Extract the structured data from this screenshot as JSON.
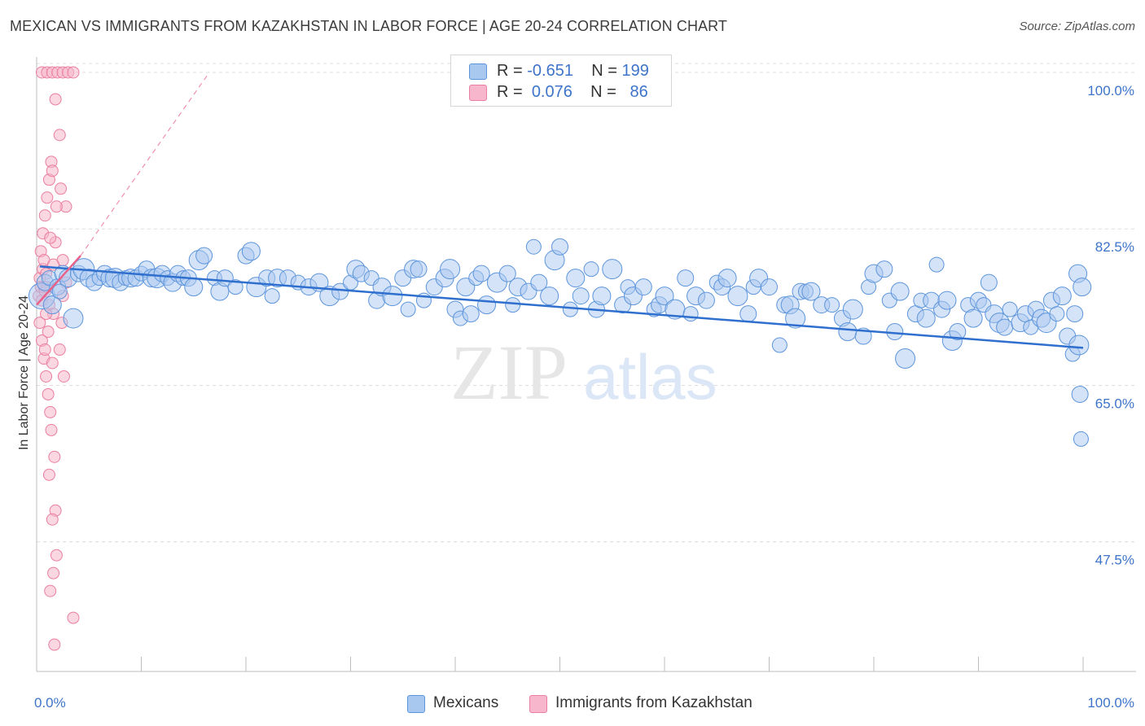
{
  "header": {
    "title": "MEXICAN VS IMMIGRANTS FROM KAZAKHSTAN IN LABOR FORCE | AGE 20-24 CORRELATION CHART",
    "source": "Source: ZipAtlas.com"
  },
  "watermark": {
    "zip": "ZIP",
    "atlas": "atlas"
  },
  "legend_top": [
    {
      "r_label": "R =",
      "r_value": "-0.651",
      "n_label": "N =",
      "n_value": "199",
      "color": "#a9c8f0"
    },
    {
      "r_label": "R =",
      "r_value": "0.076",
      "n_label": "N =",
      "n_value": "86",
      "color": "#f7b6cb"
    }
  ],
  "legend_bottom": [
    {
      "label": "Mexicans",
      "color": "#a9c8f0"
    },
    {
      "label": "Immigrants from Kazakhstan",
      "color": "#f7b6cb"
    }
  ],
  "colors": {
    "blue_fill": "#a9c8f0",
    "blue_stroke": "#5d95dc",
    "blue_line": "#2f6fce",
    "pink_fill": "#f7b6cb",
    "pink_stroke": "#ea7fa0",
    "pink_line": "#e8628c",
    "grid": "#dcdcdc",
    "tick_text": "#3d74c9"
  },
  "chart_data": {
    "type": "scatter",
    "title": "MEXICAN VS IMMIGRANTS FROM KAZAKHSTAN IN LABOR FORCE | AGE 20-24 CORRELATION CHART",
    "xlabel": "",
    "ylabel": "In Labor Force | Age 20-24",
    "xlim": [
      0,
      100
    ],
    "ylim": [
      33,
      101
    ],
    "x_tick_labels": [
      {
        "value": 0,
        "label": "0.0%"
      },
      {
        "value": 100,
        "label": "100.0%"
      }
    ],
    "y_tick_labels": [
      {
        "value": 100,
        "label": "100.0%"
      },
      {
        "value": 82.5,
        "label": "82.5%"
      },
      {
        "value": 65,
        "label": "65.0%"
      },
      {
        "value": 47.5,
        "label": "47.5%"
      }
    ],
    "grid": true,
    "legend_position": "top-center",
    "series": [
      {
        "name": "Mexicans",
        "r": -0.651,
        "n": 199,
        "trend": {
          "x0": 0.3,
          "y0": 78.3,
          "x1": 100,
          "y1": 69.2
        },
        "points": [
          [
            0.5,
            75
          ],
          [
            0.8,
            76.5
          ],
          [
            1.2,
            77
          ],
          [
            1.5,
            74
          ],
          [
            2,
            76
          ],
          [
            2.2,
            75.5
          ],
          [
            2.5,
            77.5
          ],
          [
            3,
            77
          ],
          [
            3.5,
            72.5
          ],
          [
            4,
            77.5
          ],
          [
            4.5,
            78
          ],
          [
            5,
            77
          ],
          [
            5.5,
            76.5
          ],
          [
            6,
            77
          ],
          [
            6.5,
            77.5
          ],
          [
            7,
            77
          ],
          [
            7.5,
            77
          ],
          [
            8,
            76.5
          ],
          [
            8.5,
            77
          ],
          [
            9,
            77
          ],
          [
            9.5,
            77
          ],
          [
            10,
            77.5
          ],
          [
            10.5,
            78
          ],
          [
            11,
            77
          ],
          [
            11.5,
            77
          ],
          [
            12,
            77.5
          ],
          [
            12.5,
            77
          ],
          [
            13,
            76.5
          ],
          [
            13.5,
            77.5
          ],
          [
            14,
            77
          ],
          [
            14.5,
            77
          ],
          [
            15,
            76
          ],
          [
            15.5,
            79
          ],
          [
            16,
            79.5
          ],
          [
            17,
            77
          ],
          [
            17.5,
            75.5
          ],
          [
            18,
            77
          ],
          [
            19,
            76
          ],
          [
            20,
            79.5
          ],
          [
            20.5,
            80
          ],
          [
            21,
            76
          ],
          [
            22,
            77
          ],
          [
            22.5,
            75
          ],
          [
            23,
            77
          ],
          [
            24,
            77
          ],
          [
            25,
            76.5
          ],
          [
            26,
            76
          ],
          [
            27,
            76.5
          ],
          [
            28,
            75
          ],
          [
            29,
            75.5
          ],
          [
            30,
            76.5
          ],
          [
            30.5,
            78
          ],
          [
            31,
            77.5
          ],
          [
            32,
            77
          ],
          [
            32.5,
            74.5
          ],
          [
            33,
            76
          ],
          [
            34,
            75
          ],
          [
            35,
            77
          ],
          [
            35.5,
            73.5
          ],
          [
            36,
            78
          ],
          [
            36.5,
            78
          ],
          [
            37,
            74.5
          ],
          [
            38,
            76
          ],
          [
            39,
            77
          ],
          [
            39.5,
            78
          ],
          [
            40,
            73.5
          ],
          [
            40.5,
            72.5
          ],
          [
            41,
            76
          ],
          [
            41.5,
            73
          ],
          [
            42,
            77
          ],
          [
            42.5,
            77.5
          ],
          [
            43,
            74
          ],
          [
            44,
            76.5
          ],
          [
            45,
            77.5
          ],
          [
            45.5,
            74
          ],
          [
            46,
            76
          ],
          [
            47,
            75.5
          ],
          [
            47.5,
            80.5
          ],
          [
            48,
            76.5
          ],
          [
            49,
            75
          ],
          [
            49.5,
            79
          ],
          [
            50,
            80.5
          ],
          [
            51,
            73.5
          ],
          [
            51.5,
            77
          ],
          [
            52,
            75
          ],
          [
            53,
            78
          ],
          [
            53.5,
            73.5
          ],
          [
            54,
            75
          ],
          [
            55,
            78
          ],
          [
            56,
            74
          ],
          [
            56.5,
            76
          ],
          [
            57,
            75
          ],
          [
            58,
            76
          ],
          [
            59,
            73.5
          ],
          [
            59.5,
            74
          ],
          [
            60,
            75
          ],
          [
            61,
            73.5
          ],
          [
            62,
            77
          ],
          [
            62.5,
            73
          ],
          [
            63,
            75
          ],
          [
            64,
            74.5
          ],
          [
            65,
            76.5
          ],
          [
            65.5,
            76
          ],
          [
            66,
            77
          ],
          [
            67,
            75
          ],
          [
            68,
            73
          ],
          [
            68.5,
            76
          ],
          [
            69,
            77
          ],
          [
            70,
            76
          ],
          [
            71,
            69.5
          ],
          [
            71.5,
            74
          ],
          [
            72,
            74
          ],
          [
            72.5,
            72.5
          ],
          [
            73,
            75.5
          ],
          [
            73.5,
            75.5
          ],
          [
            74,
            75.5
          ],
          [
            75,
            74
          ],
          [
            76,
            74
          ],
          [
            77,
            72.5
          ],
          [
            77.5,
            71
          ],
          [
            78,
            73.5
          ],
          [
            79,
            70.5
          ],
          [
            79.5,
            76
          ],
          [
            80,
            77.5
          ],
          [
            81,
            78
          ],
          [
            81.5,
            74.5
          ],
          [
            82,
            71
          ],
          [
            82.5,
            75.5
          ],
          [
            83,
            68
          ],
          [
            84,
            73
          ],
          [
            84.5,
            74.5
          ],
          [
            85,
            72.5
          ],
          [
            85.5,
            74.5
          ],
          [
            86,
            78.5
          ],
          [
            86.5,
            73.5
          ],
          [
            87,
            74.5
          ],
          [
            87.5,
            70
          ],
          [
            88,
            71
          ],
          [
            89,
            74
          ],
          [
            89.5,
            72.5
          ],
          [
            90,
            74.5
          ],
          [
            90.5,
            74
          ],
          [
            91,
            76.5
          ],
          [
            91.5,
            73
          ],
          [
            92,
            72
          ],
          [
            92.5,
            71.5
          ],
          [
            93,
            73.5
          ],
          [
            94,
            72
          ],
          [
            94.5,
            73
          ],
          [
            95,
            71.5
          ],
          [
            95.5,
            73.5
          ],
          [
            96,
            72.5
          ],
          [
            96.5,
            72
          ],
          [
            97,
            74.5
          ],
          [
            97.5,
            73
          ],
          [
            98,
            75
          ],
          [
            98.5,
            70.5
          ],
          [
            99,
            68.5
          ],
          [
            99.2,
            73
          ],
          [
            99.5,
            77.5
          ],
          [
            99.6,
            69.5
          ],
          [
            99.7,
            64
          ],
          [
            99.8,
            59
          ],
          [
            99.9,
            76
          ]
        ]
      },
      {
        "name": "Immigrants from Kazakhstan",
        "r": 0.076,
        "n": 86,
        "trend": {
          "x0": 0,
          "y0": 74,
          "x1": 4.2,
          "y1": 79.5,
          "dash_x1": 16.5,
          "dash_y1": 100
        },
        "points": [
          [
            0.2,
            75
          ],
          [
            0.3,
            77
          ],
          [
            0.4,
            76
          ],
          [
            0.5,
            74.5
          ],
          [
            0.6,
            78
          ],
          [
            0.7,
            76
          ],
          [
            0.8,
            75.5
          ],
          [
            0.9,
            77.5
          ],
          [
            1,
            76
          ],
          [
            1.2,
            74
          ],
          [
            0.3,
            72
          ],
          [
            0.5,
            70
          ],
          [
            0.7,
            68
          ],
          [
            0.9,
            66
          ],
          [
            1.1,
            64
          ],
          [
            1.3,
            62
          ],
          [
            0.4,
            80
          ],
          [
            0.6,
            82
          ],
          [
            0.8,
            84
          ],
          [
            1,
            86
          ],
          [
            1.2,
            88
          ],
          [
            1.4,
            90
          ],
          [
            0.5,
            100
          ],
          [
            1,
            100
          ],
          [
            1.5,
            100
          ],
          [
            2,
            100
          ],
          [
            2.5,
            100
          ],
          [
            3,
            100
          ],
          [
            3.5,
            100
          ],
          [
            1.8,
            97
          ],
          [
            2.2,
            93
          ],
          [
            1.5,
            89
          ],
          [
            2.8,
            85
          ],
          [
            1.8,
            81
          ],
          [
            2.5,
            79
          ],
          [
            1.6,
            73
          ],
          [
            2.2,
            69
          ],
          [
            2.6,
            66
          ],
          [
            1.4,
            60
          ],
          [
            1.7,
            57
          ],
          [
            1.2,
            55
          ],
          [
            1.8,
            51
          ],
          [
            1.5,
            50
          ],
          [
            1.9,
            46
          ],
          [
            1.6,
            44
          ],
          [
            1.3,
            42
          ],
          [
            3.5,
            39
          ],
          [
            1.7,
            36
          ],
          [
            0.8,
            69
          ],
          [
            1.1,
            71
          ],
          [
            1.5,
            67.5
          ],
          [
            2.5,
            75
          ],
          [
            2.8,
            76.5
          ],
          [
            0.7,
            79
          ],
          [
            1.3,
            81.5
          ],
          [
            1.9,
            85
          ],
          [
            2.3,
            87
          ],
          [
            1.6,
            78.5
          ],
          [
            2.4,
            72
          ],
          [
            0.9,
            73
          ]
        ]
      }
    ]
  }
}
